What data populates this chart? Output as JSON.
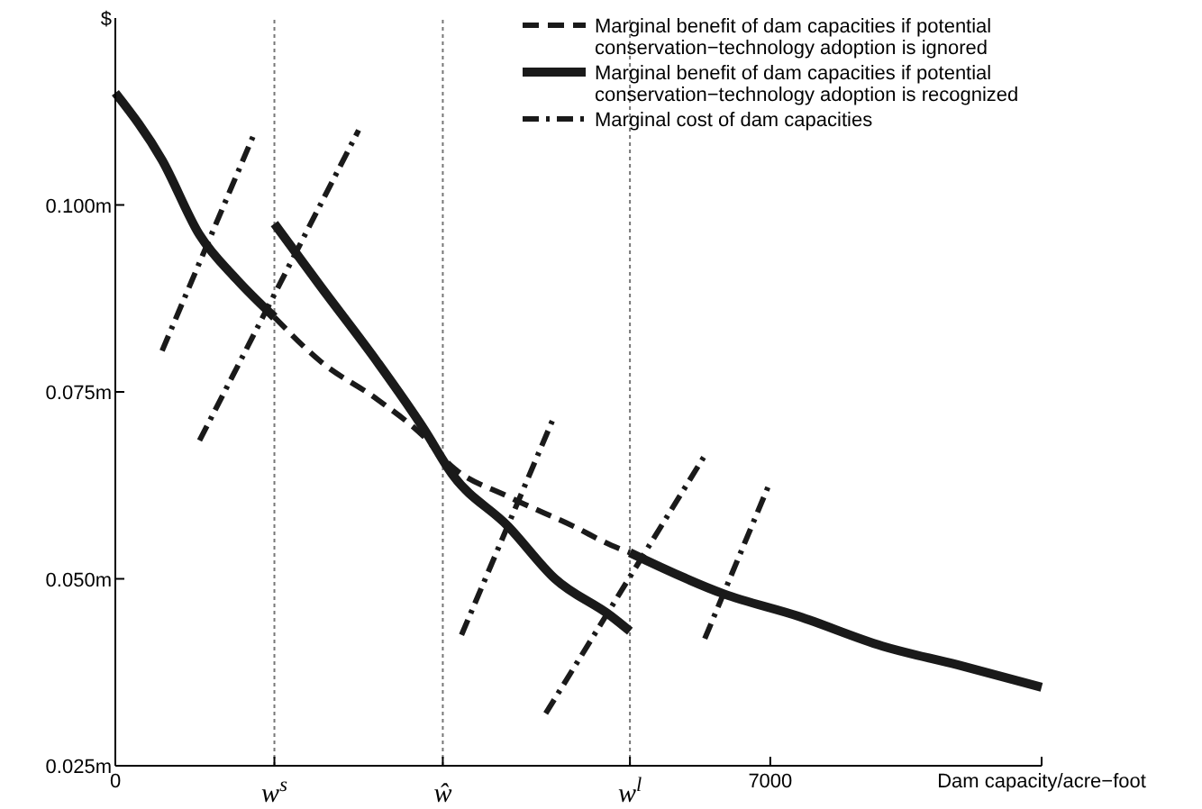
{
  "chart_data": {
    "type": "line",
    "ylabel": "$",
    "xlabel": "Dam capacity/acre−foot",
    "xlim": [
      0,
      9900
    ],
    "ylim": [
      0.025,
      0.125
    ],
    "xticks": [
      0,
      {
        "value": 1700,
        "label": "w$^{s}$"
      },
      {
        "value": 3500,
        "label": "ŵ"
      },
      {
        "value": 5500,
        "label": "w$^{l}$"
      },
      7000,
      {
        "value": 9900,
        "label": null
      }
    ],
    "yticks": [
      {
        "value": 0.025,
        "label": "0.025m"
      },
      {
        "value": 0.05,
        "label": "0.050m"
      },
      {
        "value": 0.075,
        "label": "0.075m"
      },
      {
        "value": 0.1,
        "label": "0.100m"
      }
    ],
    "legend": "top right",
    "ref_lines": [
      {
        "axis": "x",
        "value": 1700,
        "color": "#777777",
        "line_style": "dotted"
      },
      {
        "axis": "x",
        "value": 3500,
        "color": "#777777",
        "line_style": "dotted"
      },
      {
        "axis": "x",
        "value": 5500,
        "color": "#777777",
        "line_style": "dotted"
      }
    ],
    "series": [
      {
        "name": "Marginal benefit of dam capacities if potential conservation−technology adoption is ignored",
        "color": "#1a1a1a",
        "line_style": "dashed",
        "x": [
          1700,
          2200,
          2800,
          3300,
          3600,
          4200,
          4900,
          5300,
          5500
        ],
        "values": [
          0.085,
          0.079,
          0.074,
          0.069,
          0.065,
          0.061,
          0.057,
          0.0545,
          0.0535
        ]
      },
      {
        "name": "Marginal benefit of dam capacities if potential conservation−technology adoption is recognized",
        "color": "#1a1a1a",
        "line_style": "solid",
        "x": [
          1700,
          2200,
          2800,
          3300,
          3600,
          4200,
          4700,
          5300,
          5500
        ],
        "values": [
          0.0975,
          0.089,
          0.079,
          0.07,
          0.064,
          0.057,
          0.05,
          0.045,
          0.043
        ]
      },
      {
        "color": "#1a1a1a",
        "line_style": "solid",
        "x": [
          0,
          500,
          900,
          1300,
          1700
        ],
        "values": [
          0.115,
          0.106,
          0.096,
          0.09,
          0.085
        ]
      },
      {
        "color": "#1a1a1a",
        "line_style": "solid",
        "x": [
          5500,
          6500,
          7300,
          8200,
          9000,
          9900
        ],
        "values": [
          0.0535,
          0.048,
          0.045,
          0.041,
          0.0385,
          0.0355
        ]
      },
      {
        "name": "Marginal cost of dam capacities",
        "color": "#1a1a1a",
        "line_style": "dashdot",
        "x": [
          500,
          1500
        ],
        "values": [
          0.0805,
          0.11
        ]
      },
      {
        "color": "#1a1a1a",
        "line_style": "dashdot",
        "x": [
          900,
          2600
        ],
        "values": [
          0.0685,
          0.11
        ]
      },
      {
        "color": "#1a1a1a",
        "line_style": "dashdot",
        "x": [
          3700,
          4700
        ],
        "values": [
          0.0425,
          0.072
        ]
      },
      {
        "color": "#1a1a1a",
        "line_style": "dashdot",
        "x": [
          4600,
          6300
        ],
        "values": [
          0.032,
          0.0665
        ]
      },
      {
        "color": "#1a1a1a",
        "line_style": "dashdot",
        "x": [
          6300,
          7000
        ],
        "values": [
          0.042,
          0.063
        ]
      }
    ]
  }
}
